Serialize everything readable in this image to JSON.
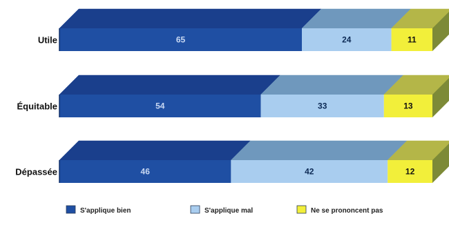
{
  "chart_data": {
    "type": "bar",
    "stacked": true,
    "orientation": "horizontal",
    "style": "3d",
    "categories": [
      "Utile",
      "Équitable",
      "Dépassée"
    ],
    "series": [
      {
        "name": "S'applique bien",
        "values": [
          65,
          54,
          46
        ],
        "color": "#1f4fa3",
        "top_color": "#1a3f8c",
        "side_color": "#14336f",
        "label_color": "#c8d8f2"
      },
      {
        "name": "S'applique mal",
        "values": [
          24,
          33,
          42
        ],
        "color": "#a9cdef",
        "top_color": "#6f98bd",
        "side_color": "#5f86aa",
        "label_color": "#0d2a55"
      },
      {
        "name": "Ne se prononcent pas",
        "values": [
          11,
          13,
          12
        ],
        "color": "#f2ef3a",
        "top_color": "#b4b648",
        "side_color": "#7d8a37",
        "label_color": "#111111"
      }
    ],
    "xlim": [
      0,
      100
    ],
    "grid": false,
    "legend_position": "bottom"
  }
}
